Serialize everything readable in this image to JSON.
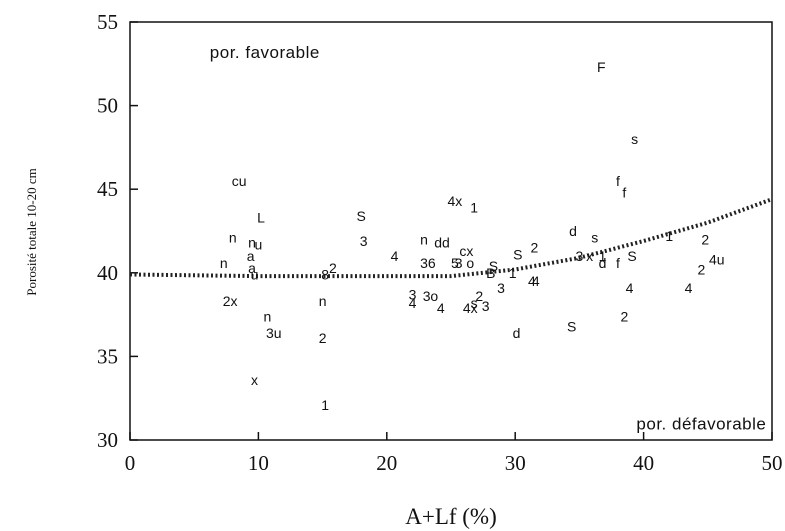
{
  "chart_data": {
    "type": "scatter",
    "title": "",
    "xlabel": "A+Lf (%)",
    "ylabel": "Porosité totale 10-20 cm",
    "xlim": [
      0,
      50
    ],
    "ylim": [
      30,
      55
    ],
    "xticks": [
      0,
      10,
      20,
      30,
      40,
      50
    ],
    "yticks": [
      30,
      35,
      40,
      45,
      50,
      55
    ],
    "grid": false,
    "legend": "none",
    "annotations": [
      {
        "text": "por. favorable",
        "x": 10.5,
        "y": 53.2
      },
      {
        "text": "por. défavorable",
        "x": 44.5,
        "y": 31.0
      }
    ],
    "trend_line": {
      "style": "dotted",
      "x": [
        0,
        5,
        10,
        15,
        20,
        25,
        30,
        35,
        40,
        45,
        50
      ],
      "y": [
        39.9,
        39.85,
        39.8,
        39.8,
        39.8,
        39.8,
        40.2,
        40.9,
        41.9,
        43.0,
        44.4
      ]
    },
    "points": [
      {
        "label": "F",
        "x": 36.7,
        "y": 52.3
      },
      {
        "label": "s",
        "x": 39.3,
        "y": 48.0
      },
      {
        "label": "f",
        "x": 38.0,
        "y": 45.5
      },
      {
        "label": "f",
        "x": 38.5,
        "y": 44.8
      },
      {
        "label": "cu",
        "x": 8.5,
        "y": 45.5
      },
      {
        "label": "4x",
        "x": 25.3,
        "y": 44.3
      },
      {
        "label": "1",
        "x": 26.8,
        "y": 43.9
      },
      {
        "label": "L",
        "x": 10.2,
        "y": 43.3
      },
      {
        "label": "S",
        "x": 18.0,
        "y": 43.4
      },
      {
        "label": "d",
        "x": 34.5,
        "y": 42.5
      },
      {
        "label": "s",
        "x": 36.2,
        "y": 42.1
      },
      {
        "label": "1",
        "x": 42.0,
        "y": 42.2
      },
      {
        "label": "2",
        "x": 44.8,
        "y": 42.0
      },
      {
        "label": "n",
        "x": 8.0,
        "y": 42.1
      },
      {
        "label": "n",
        "x": 9.5,
        "y": 41.8
      },
      {
        "label": "u",
        "x": 10.0,
        "y": 41.7
      },
      {
        "label": "3",
        "x": 18.2,
        "y": 41.9
      },
      {
        "label": "n",
        "x": 22.9,
        "y": 42.0
      },
      {
        "label": "dd",
        "x": 24.3,
        "y": 41.8
      },
      {
        "label": "2",
        "x": 31.5,
        "y": 41.5
      },
      {
        "label": "cx",
        "x": 26.2,
        "y": 41.3
      },
      {
        "label": "S",
        "x": 30.2,
        "y": 41.1
      },
      {
        "label": "4",
        "x": 20.6,
        "y": 41.0
      },
      {
        "label": "a",
        "x": 9.4,
        "y": 41.0
      },
      {
        "label": "3",
        "x": 35.0,
        "y": 41.0
      },
      {
        "label": "x",
        "x": 35.8,
        "y": 41.0
      },
      {
        "label": "1",
        "x": 36.8,
        "y": 41.0
      },
      {
        "label": "S",
        "x": 39.1,
        "y": 41.0
      },
      {
        "label": "4u",
        "x": 45.7,
        "y": 40.8
      },
      {
        "label": "n",
        "x": 7.3,
        "y": 40.6
      },
      {
        "label": "36",
        "x": 23.2,
        "y": 40.6
      },
      {
        "label": "5",
        "x": 25.3,
        "y": 40.6
      },
      {
        "label": "3",
        "x": 25.6,
        "y": 40.6
      },
      {
        "label": "o",
        "x": 26.5,
        "y": 40.6
      },
      {
        "label": "d",
        "x": 36.8,
        "y": 40.6
      },
      {
        "label": "f",
        "x": 38.0,
        "y": 40.6
      },
      {
        "label": "a",
        "x": 9.5,
        "y": 40.3
      },
      {
        "label": "S",
        "x": 28.3,
        "y": 40.4
      },
      {
        "label": "2",
        "x": 15.8,
        "y": 40.3
      },
      {
        "label": "2",
        "x": 44.5,
        "y": 40.2
      },
      {
        "label": "u",
        "x": 9.7,
        "y": 39.9
      },
      {
        "label": "8",
        "x": 15.2,
        "y": 39.9
      },
      {
        "label": "B",
        "x": 28.1,
        "y": 40.0
      },
      {
        "label": "1",
        "x": 29.8,
        "y": 40.0
      },
      {
        "label": "4",
        "x": 31.3,
        "y": 39.5
      },
      {
        "label": "4",
        "x": 31.6,
        "y": 39.5
      },
      {
        "label": "4",
        "x": 38.9,
        "y": 39.1
      },
      {
        "label": "4",
        "x": 43.5,
        "y": 39.1
      },
      {
        "label": "3",
        "x": 28.9,
        "y": 39.1
      },
      {
        "label": "3",
        "x": 22.0,
        "y": 38.7
      },
      {
        "label": "3",
        "x": 23.1,
        "y": 38.6
      },
      {
        "label": "o",
        "x": 23.7,
        "y": 38.6
      },
      {
        "label": "2",
        "x": 27.2,
        "y": 38.6
      },
      {
        "label": "2x",
        "x": 7.8,
        "y": 38.3
      },
      {
        "label": "n",
        "x": 15.0,
        "y": 38.3
      },
      {
        "label": "4",
        "x": 22.0,
        "y": 38.2
      },
      {
        "label": "s",
        "x": 26.8,
        "y": 38.2
      },
      {
        "label": "4",
        "x": 24.2,
        "y": 37.9
      },
      {
        "label": "4x",
        "x": 26.5,
        "y": 37.9
      },
      {
        "label": "3",
        "x": 27.7,
        "y": 38.0
      },
      {
        "label": "n",
        "x": 10.7,
        "y": 37.4
      },
      {
        "label": "2",
        "x": 38.5,
        "y": 37.4
      },
      {
        "label": "S",
        "x": 34.4,
        "y": 36.8
      },
      {
        "label": "3u",
        "x": 11.2,
        "y": 36.4
      },
      {
        "label": "d",
        "x": 30.1,
        "y": 36.4
      },
      {
        "label": "2",
        "x": 15.0,
        "y": 36.1
      },
      {
        "label": "x",
        "x": 9.7,
        "y": 33.6
      },
      {
        "label": "1",
        "x": 15.2,
        "y": 32.1
      }
    ]
  }
}
